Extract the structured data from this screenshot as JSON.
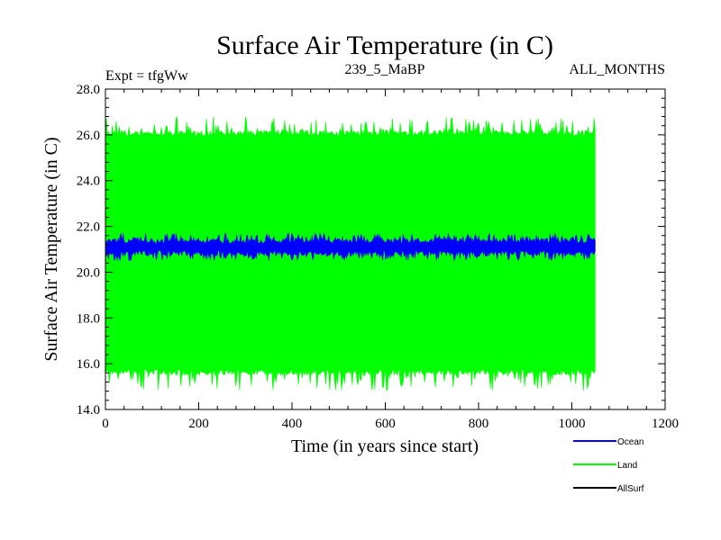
{
  "chart_data": {
    "type": "line",
    "title": "Surface Air Temperature (in C)",
    "expt_label": "Expt = tfgWw",
    "subtitle_center": "239_5_MaBP",
    "subtitle_right": "ALL_MONTHS",
    "xlabel": "Time (in years since start)",
    "ylabel": "Surface Air Temperature (in C)",
    "xlim": [
      0,
      1200
    ],
    "ylim": [
      14.0,
      28.0
    ],
    "x_ticks": [
      "0",
      "200",
      "400",
      "600",
      "800",
      "1000",
      "1200"
    ],
    "y_ticks": [
      "14.0",
      "16.0",
      "18.0",
      "20.0",
      "22.0",
      "24.0",
      "26.0",
      "28.0"
    ],
    "x_tick_values": [
      0,
      200,
      400,
      600,
      800,
      1000,
      1200
    ],
    "y_tick_values": [
      14,
      16,
      18,
      20,
      22,
      24,
      26,
      28
    ],
    "series": [
      {
        "name": "Land",
        "color": "#00ff00",
        "x_range": [
          0,
          1050
        ],
        "band": [
          15.5,
          26.2
        ],
        "spike_range": [
          14.8,
          26.8
        ]
      },
      {
        "name": "Ocean",
        "color": "#0000ff",
        "x_range": [
          0,
          1050
        ],
        "band": [
          20.7,
          21.5
        ],
        "spike_range": [
          20.5,
          21.7
        ]
      },
      {
        "name": "AllSurf",
        "color": "#000000",
        "x_range": [],
        "band": [],
        "spike_range": []
      }
    ],
    "legend": [
      {
        "label": "Ocean",
        "color": "#0000ff"
      },
      {
        "label": "Land",
        "color": "#00ff00"
      },
      {
        "label": "AllSurf",
        "color": "#000000"
      }
    ],
    "legend_position": "bottom-right"
  }
}
